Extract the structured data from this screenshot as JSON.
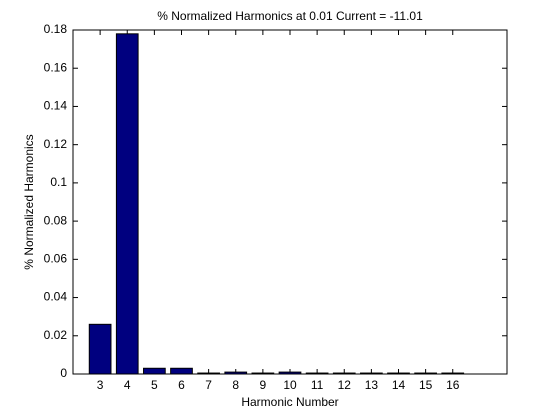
{
  "chart_data": {
    "type": "bar",
    "title": "% Normalized Harmonics at 0.01 Current = -11.01",
    "x_label": "Harmonic Number",
    "y_label": "% Normalized Harmonics",
    "x": [
      3,
      4,
      5,
      6,
      7,
      8,
      9,
      10,
      11,
      12,
      13,
      14,
      15,
      16
    ],
    "values": [
      0.026,
      0.178,
      0.003,
      0.003,
      0.0005,
      0.001,
      0.0005,
      0.001,
      0.0005,
      0.0005,
      0.0005,
      0.0005,
      0.0005,
      0.0005
    ],
    "color": "#00007f",
    "xlim": [
      2,
      18
    ],
    "xticks": [
      3,
      4,
      5,
      6,
      7,
      8,
      9,
      10,
      11,
      12,
      13,
      14,
      15,
      16
    ],
    "ylim": [
      0,
      0.18
    ],
    "yticks": [
      0,
      0.02,
      0.04,
      0.06,
      0.08,
      0.1,
      0.12,
      0.14,
      0.16,
      0.18
    ],
    "grid": false
  }
}
